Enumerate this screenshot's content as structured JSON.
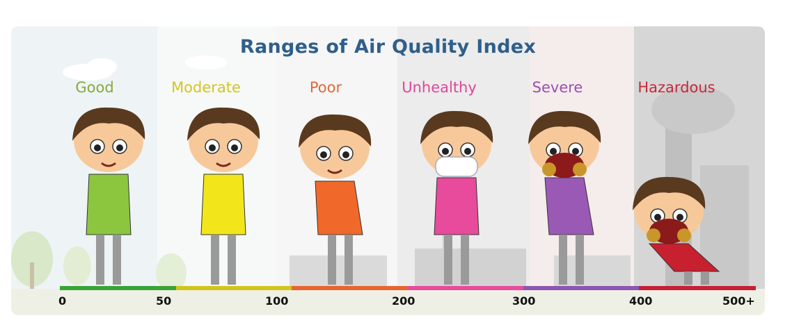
{
  "title": "Ranges of Air Quality Index",
  "categories": [
    {
      "label": "Good",
      "color": "#8aa83a",
      "bar_color": "#3aa335"
    },
    {
      "label": "Moderate",
      "color": "#d4c51e",
      "bar_color": "#d2c51a"
    },
    {
      "label": "Poor",
      "color": "#e0683a",
      "bar_color": "#e8642e"
    },
    {
      "label": "Unhealthy",
      "color": "#e0459a",
      "bar_color": "#e84a9c"
    },
    {
      "label": "Severe",
      "color": "#9b4fb0",
      "bar_color": "#8e55b2"
    },
    {
      "label": "Hazardous",
      "color": "#c8283c",
      "bar_color": "#c71f34"
    }
  ],
  "ticks": [
    "0",
    "50",
    "100",
    "200",
    "300",
    "400",
    "500+"
  ],
  "shirt_colors": [
    "#8cc63f",
    "#f2e61a",
    "#f0692a",
    "#e84a9c",
    "#9b59b6",
    "#c7202f"
  ],
  "mask_color": "#8b1a1a"
}
